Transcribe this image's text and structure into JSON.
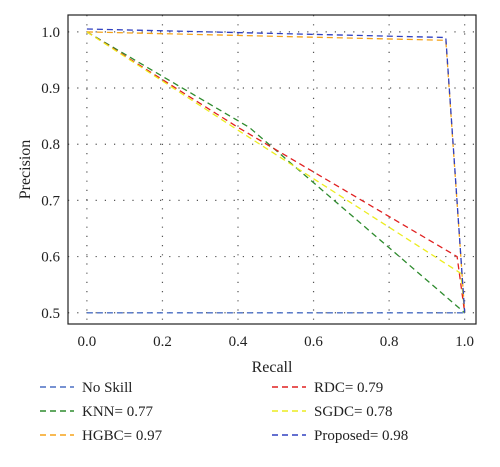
{
  "chart_data": {
    "type": "line",
    "title": "",
    "xlabel": "Recall",
    "ylabel": "Precision",
    "xlim": [
      -0.05,
      1.03
    ],
    "ylim": [
      0.48,
      1.03
    ],
    "xticks": [
      0.0,
      0.2,
      0.4,
      0.6,
      0.8,
      1.0
    ],
    "xtick_labels": [
      "0.0",
      "0.2",
      "0.4",
      "0.6",
      "0.8",
      "1.0"
    ],
    "yticks": [
      0.5,
      0.6,
      0.7,
      0.8,
      0.9,
      1.0
    ],
    "ytick_labels": [
      "0.5",
      "0.6",
      "0.7",
      "0.8",
      "0.9",
      "1.0"
    ],
    "grid": true,
    "legend_position": "bottom",
    "series": [
      {
        "name": "No Skill",
        "color": "#4a6fc4",
        "dash": "dashed",
        "x": [
          0.0,
          1.0
        ],
        "y": [
          0.5,
          0.5
        ]
      },
      {
        "name": "KNN= 0.77",
        "color": "#2e8b2e",
        "dash": "dashed",
        "x": [
          0.0,
          0.43,
          1.0,
          1.0
        ],
        "y": [
          1.0,
          0.83,
          0.5,
          0.5
        ]
      },
      {
        "name": "HGBC= 0.97",
        "color": "#f5a31a",
        "dash": "dashed",
        "x": [
          0.0,
          0.95,
          1.0
        ],
        "y": [
          1.0,
          0.985,
          0.5
        ]
      },
      {
        "name": "RDC= 0.79",
        "color": "#e02020",
        "dash": "dashed",
        "x": [
          0.0,
          0.4,
          0.98,
          1.0
        ],
        "y": [
          1.0,
          0.83,
          0.6,
          0.5
        ]
      },
      {
        "name": "SGDC= 0.78",
        "color": "#ecec20",
        "dash": "dashed",
        "x": [
          0.0,
          0.4,
          0.99,
          1.0
        ],
        "y": [
          1.0,
          0.825,
          0.57,
          0.5
        ]
      },
      {
        "name": "Proposed= 0.98",
        "color": "#3040c0",
        "dash": "dashed",
        "x": [
          0.0,
          0.95,
          1.0
        ],
        "y": [
          1.005,
          0.99,
          0.5
        ]
      }
    ]
  }
}
